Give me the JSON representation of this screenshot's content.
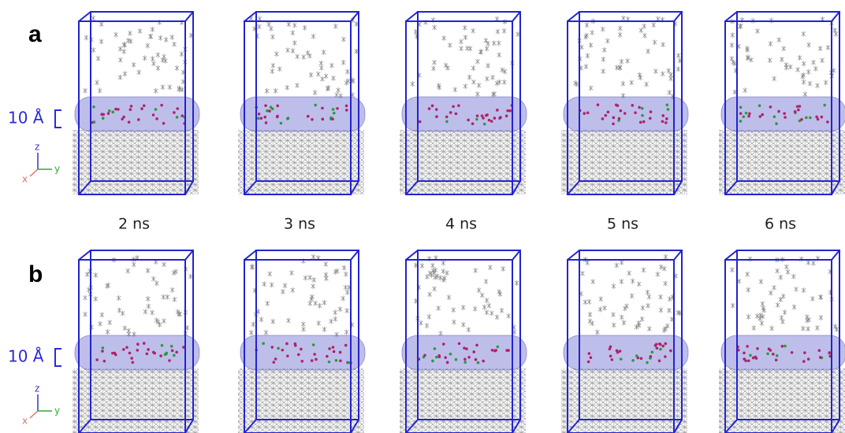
{
  "panels": [
    {
      "label": "a",
      "scale_label": "10 Å",
      "axes": {
        "z": "z",
        "y": "y",
        "x": "x"
      }
    },
    {
      "label": "b",
      "scale_label": "10 Å",
      "axes": {
        "z": "z",
        "y": "y",
        "x": "x"
      }
    }
  ],
  "time_labels": [
    "2 ns",
    "3 ns",
    "4 ns",
    "5 ns",
    "6 ns"
  ]
}
